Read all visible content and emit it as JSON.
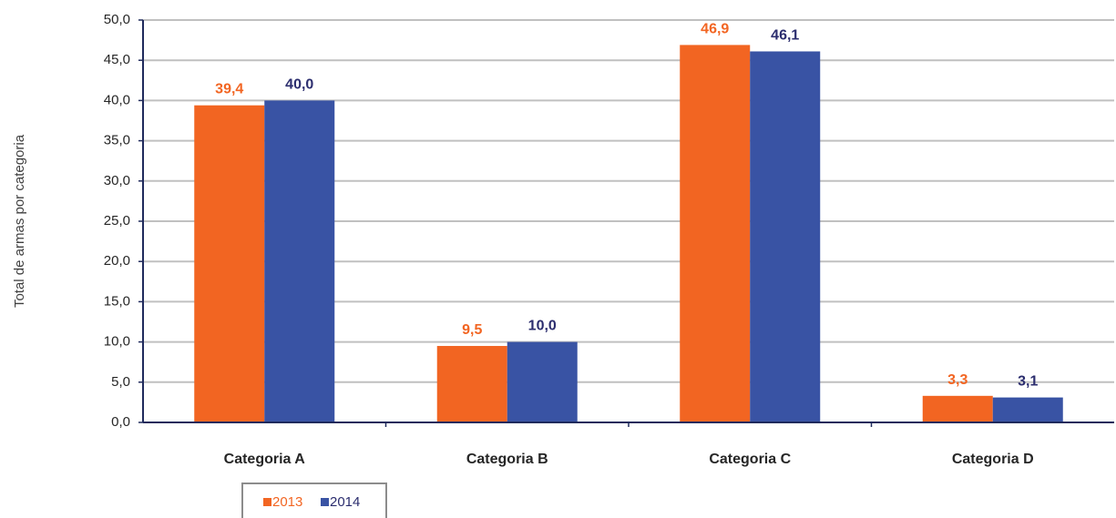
{
  "chart_data": {
    "type": "bar",
    "title": "",
    "xlabel": "",
    "ylabel": "Total de armas por categoria",
    "categories": [
      "Categoria A",
      "Categoria B",
      "Categoria C",
      "Categoria D"
    ],
    "series": [
      {
        "name": "2013",
        "values": [
          39.4,
          9.5,
          46.9,
          3.3
        ],
        "labels": [
          "39,4",
          "9,5",
          "46,9",
          "3,3"
        ],
        "color": "#f26522"
      },
      {
        "name": "2014",
        "values": [
          40.0,
          10.0,
          46.1,
          3.1
        ],
        "labels": [
          "40,0",
          "10,0",
          "46,1",
          "3,1"
        ],
        "color": "#3953a4"
      }
    ],
    "ylim": [
      0,
      50
    ],
    "yticks": [
      0,
      5,
      10,
      15,
      20,
      25,
      30,
      35,
      40,
      45,
      50
    ],
    "ytick_labels": [
      "0,0",
      "5,0",
      "10,0",
      "15,0",
      "20,0",
      "25,0",
      "30,0",
      "35,0",
      "40,0",
      "45,0",
      "50,0"
    ],
    "grid": true,
    "legend": "bottom-left",
    "label_colors": [
      "#f26522",
      "#2b2d6e"
    ],
    "axis_color": "#1f2a5c",
    "grid_color": "#c0c0c0"
  }
}
